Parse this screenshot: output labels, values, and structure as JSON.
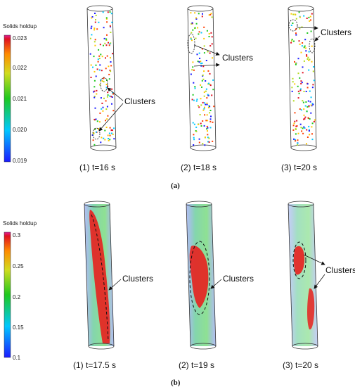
{
  "panels": [
    {
      "subfigure_label": "(a)",
      "colorbar": {
        "title": "Solids holdup",
        "ticks": [
          "0.023",
          "0.022",
          "0.021",
          "0.020",
          "0.019"
        ],
        "min": 0.019,
        "max": 0.023
      },
      "cylinders": [
        {
          "caption": "(1) t=16 s",
          "annotation": "Clusters"
        },
        {
          "caption": "(2) t=18 s",
          "annotation": "Clusters"
        },
        {
          "caption": "(3) t=20 s",
          "annotation": "Clusters"
        }
      ]
    },
    {
      "subfigure_label": "(b)",
      "colorbar": {
        "title": "Solids holdup",
        "ticks": [
          "0.3",
          "0.25",
          "0.2",
          "0.15",
          "0.1"
        ],
        "min": 0.1,
        "max": 0.3
      },
      "cylinders": [
        {
          "caption": "(1) t=17.5 s",
          "annotation": "Clusters"
        },
        {
          "caption": "(2) t=19 s",
          "annotation": "Clusters"
        },
        {
          "caption": "(3) t=20 s",
          "annotation": "Clusters"
        }
      ]
    }
  ],
  "colormap": [
    "#1a1aff",
    "#00c8ff",
    "#1ec81e",
    "#b4dc1e",
    "#ffc800",
    "#ff3c00",
    "#e01020"
  ]
}
